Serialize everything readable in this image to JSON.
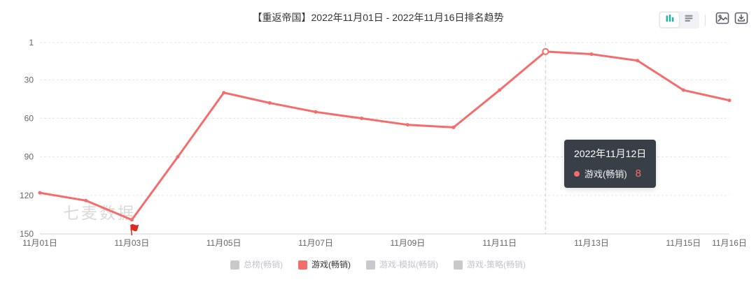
{
  "header": {
    "title": "【重返帝国】2022年11月01日 - 2022年11月16日排名趋势"
  },
  "chart_data": {
    "type": "line",
    "title": "【重返帝国】2022年11月01日 - 2022年11月16日排名趋势",
    "x": [
      "11月01日",
      "11月02日",
      "11月03日",
      "11月04日",
      "11月05日",
      "11月06日",
      "11月07日",
      "11月08日",
      "11月09日",
      "11月10日",
      "11月11日",
      "11月12日",
      "11月13日",
      "11月14日",
      "11月15日",
      "11月16日"
    ],
    "shown_x_tick_indices": [
      0,
      2,
      4,
      6,
      8,
      10,
      12,
      14,
      15
    ],
    "y_ticks": [
      1,
      30,
      60,
      90,
      120,
      150
    ],
    "y_inverted": true,
    "ylim": [
      1,
      150
    ],
    "grid": true,
    "legend_position": "bottom",
    "series": [
      {
        "name": "游戏(畅销)",
        "color": "#f56c6c",
        "values": [
          118,
          124,
          139,
          90,
          40,
          48,
          55,
          60,
          65,
          67,
          38,
          8,
          10,
          15,
          38,
          46
        ]
      }
    ],
    "event_marker": {
      "x_index": 2,
      "type": "flag"
    },
    "highlight": {
      "x_index": 11,
      "value": 8
    }
  },
  "tooltip": {
    "date": "2022年11月12日",
    "series": "游戏(畅销)",
    "value": "8"
  },
  "watermark": "七麦数据",
  "legend": {
    "items": [
      {
        "label": "总榜(畅销)",
        "active": false
      },
      {
        "label": "游戏(畅销)",
        "active": true
      },
      {
        "label": "游戏-模拟(畅销)",
        "active": false
      },
      {
        "label": "游戏-策略(畅销)",
        "active": false
      }
    ]
  },
  "colors": {
    "accent": "#f56c6c",
    "toggle_active_icon": "#26b3a3",
    "toggle_inactive_icon": "#8a9099",
    "icon_outline": "#5a5e66",
    "tooltip_bg": "#30373f",
    "grid": "#e3e3e3",
    "axis": "#ccd0d4",
    "tick_text": "#666666",
    "guideline": "#c6c9cc",
    "flag": "#d92b1f",
    "legend_inactive": "#c8c9cc",
    "legend_active_text": "#333333",
    "legend_inactive_text": "#c0c4cc"
  }
}
